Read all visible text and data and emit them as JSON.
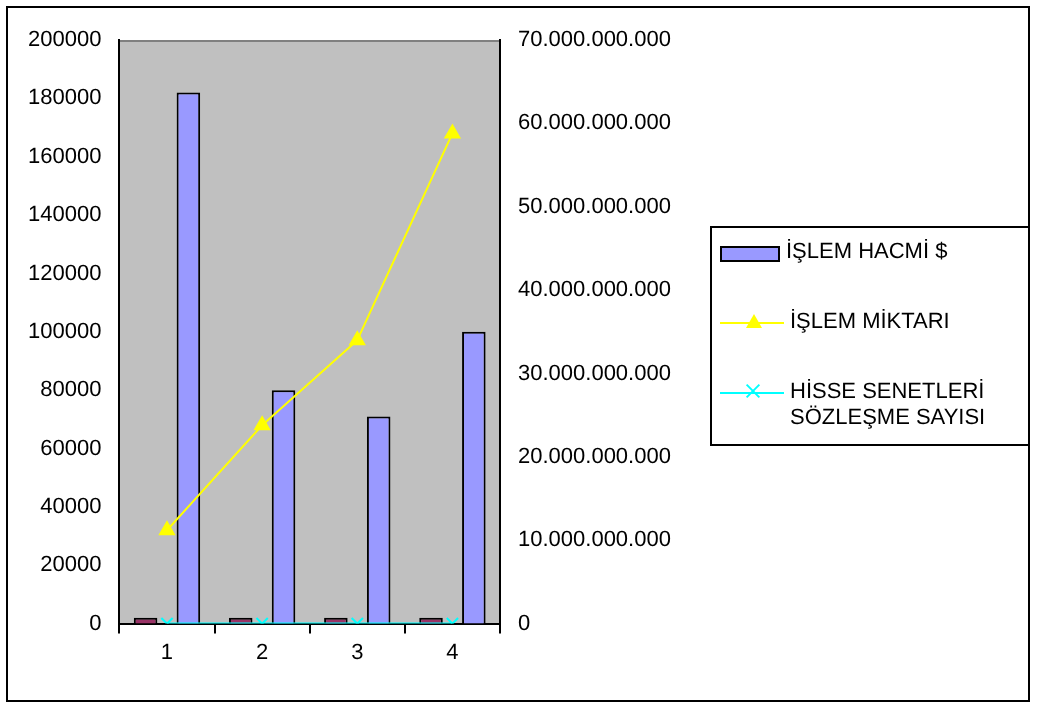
{
  "chart_data": {
    "type": "bar",
    "categories": [
      "1",
      "2",
      "3",
      "4"
    ],
    "series": [
      {
        "color": "#993366",
        "values": [
          2000,
          2000,
          2000,
          2000
        ]
      },
      {
        "name": "İŞLEM HACMİ $",
        "color": "#9999ff",
        "values": [
          182000,
          80000,
          71000,
          100000
        ]
      },
      {
        "name": "İŞLEM MİKTARI",
        "type": "line",
        "axis": "y2",
        "color": "#ffff00",
        "marker": "triangle",
        "values": [
          11200000000,
          23800000000,
          34000000000,
          58800000000
        ]
      },
      {
        "name": "HİSSE SENETLERİ SÖZLEŞME SAYISI",
        "type": "line",
        "color": "#00ffff",
        "marker": "cross",
        "values": [
          0,
          0,
          0,
          0
        ]
      }
    ],
    "ylim": [
      0,
      200000
    ],
    "yticks": [
      0,
      20000,
      40000,
      60000,
      80000,
      100000,
      120000,
      140000,
      160000,
      180000,
      200000
    ],
    "y2lim": [
      0,
      70000000000
    ],
    "y2ticks": [
      0,
      {
        "value": 10000000000,
        "label": "10.000.000.000"
      },
      {
        "value": 20000000000,
        "label": "20.000.000.000"
      },
      {
        "value": 30000000000,
        "label": "30.000.000.000"
      },
      {
        "value": 40000000000,
        "label": "40.000.000.000"
      },
      {
        "value": 50000000000,
        "label": "50.000.000.000"
      },
      {
        "value": 60000000000,
        "label": "60.000.000.000"
      },
      {
        "value": 70000000000,
        "label": "70.000.000.000"
      }
    ],
    "grid": false,
    "legend": "right"
  }
}
